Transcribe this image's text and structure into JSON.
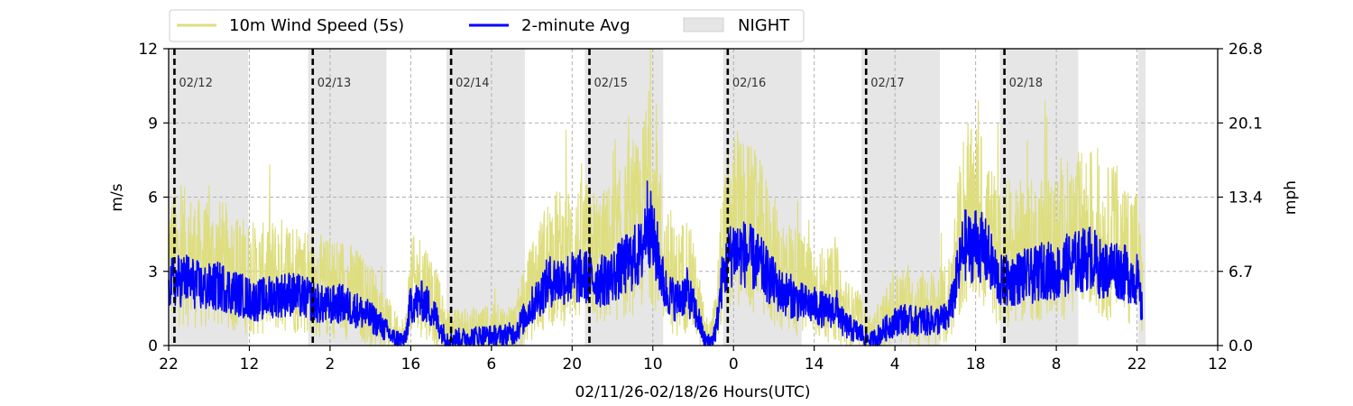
{
  "chart_data": {
    "type": "line",
    "title": "",
    "xlabel": "02/11/26-02/18/26  Hours(UTC)",
    "ylabel_left": "m/s",
    "ylabel_right": "mph",
    "x_range_hours": [
      0,
      182
    ],
    "ylim": [
      0,
      12
    ],
    "y_ticks_left": [
      "0",
      "3",
      "6",
      "9",
      "12"
    ],
    "y_ticks_right": [
      "0.0",
      "6.7",
      "13.4",
      "20.1",
      "26.8"
    ],
    "x_ticks": [
      {
        "hour": 0,
        "label": "22"
      },
      {
        "hour": 14,
        "label": "12"
      },
      {
        "hour": 28,
        "label": "2"
      },
      {
        "hour": 42,
        "label": "16"
      },
      {
        "hour": 56,
        "label": "6"
      },
      {
        "hour": 70,
        "label": "20"
      },
      {
        "hour": 84,
        "label": "10"
      },
      {
        "hour": 98,
        "label": "0"
      },
      {
        "hour": 112,
        "label": "14"
      },
      {
        "hour": 126,
        "label": "4"
      },
      {
        "hour": 140,
        "label": "18"
      },
      {
        "hour": 154,
        "label": "8"
      },
      {
        "hour": 168,
        "label": "22"
      },
      {
        "hour": 182,
        "label": "12"
      }
    ],
    "day_markers": [
      {
        "hour": 1,
        "label": "02/12"
      },
      {
        "hour": 25,
        "label": "02/13"
      },
      {
        "hour": 49,
        "label": "02/14"
      },
      {
        "hour": 73,
        "label": "02/15"
      },
      {
        "hour": 97,
        "label": "02/16"
      },
      {
        "hour": 121,
        "label": "02/17"
      },
      {
        "hour": 145,
        "label": "02/18"
      }
    ],
    "night_periods": [
      [
        0.2,
        13.8
      ],
      [
        24.2,
        37.8
      ],
      [
        48.2,
        61.8
      ],
      [
        72.2,
        85.8
      ],
      [
        96.2,
        109.8
      ],
      [
        120.2,
        133.8
      ],
      [
        144.2,
        157.8
      ],
      [
        168.2,
        169.5
      ]
    ],
    "grid": true,
    "legend_position": "top-left",
    "legend": [
      "10m Wind Speed (5s)",
      "2-minute Avg",
      "NIGHT"
    ],
    "series": [
      {
        "name": "10m Wind Speed (5s)",
        "color": "#dede80",
        "x": [
          0,
          3,
          6,
          9,
          12,
          15,
          18,
          21,
          24,
          27,
          30,
          33,
          36,
          39,
          41,
          42,
          44,
          45,
          46,
          47,
          48,
          49,
          51,
          54,
          57,
          60,
          63,
          66,
          69,
          72,
          75,
          77,
          79,
          81,
          82,
          83,
          84,
          85,
          86,
          88,
          90,
          91,
          92,
          93,
          94,
          95,
          96,
          97,
          98,
          100,
          102,
          104,
          106,
          108,
          110,
          112,
          114,
          116,
          117,
          119,
          120,
          121,
          122,
          123,
          124,
          125,
          127,
          129,
          131,
          133,
          135,
          136,
          137,
          138,
          139,
          140,
          142,
          144,
          146,
          148,
          150,
          152,
          154,
          156,
          158,
          160,
          162,
          164,
          166,
          168,
          169
        ],
        "y": [
          3.5,
          3.6,
          3.2,
          3.3,
          3.0,
          2.6,
          2.8,
          2.9,
          2.7,
          2.3,
          2.4,
          2.0,
          1.5,
          0.5,
          0.3,
          2.3,
          2.5,
          2.2,
          1.8,
          1.2,
          0.5,
          0.5,
          0.5,
          0.6,
          0.6,
          0.7,
          2.2,
          3.5,
          3.6,
          3.8,
          3.5,
          3.8,
          4.2,
          4.7,
          4.8,
          6.4,
          5.5,
          4.6,
          3.2,
          2.5,
          3.0,
          2.2,
          1.5,
          0.4,
          0.2,
          1.0,
          3.5,
          4.5,
          5.0,
          4.8,
          4.5,
          3.8,
          3.0,
          2.8,
          2.4,
          2.3,
          2.0,
          2.1,
          1.4,
          1.0,
          0.8,
          0.5,
          0.3,
          0.6,
          0.9,
          1.2,
          1.6,
          1.5,
          1.5,
          1.5,
          1.6,
          2.5,
          4.0,
          5.2,
          5.0,
          5.3,
          4.8,
          3.5,
          3.5,
          3.8,
          3.8,
          4.1,
          3.9,
          4.3,
          4.5,
          4.7,
          4.0,
          4.3,
          3.9,
          3.7,
          1.8
        ]
      },
      {
        "name": "2-minute Avg",
        "color": "#0000ff",
        "x": [
          0,
          3,
          6,
          9,
          12,
          15,
          18,
          21,
          24,
          27,
          30,
          33,
          36,
          39,
          41,
          42,
          44,
          45,
          46,
          47,
          48,
          49,
          51,
          54,
          57,
          60,
          63,
          66,
          69,
          72,
          75,
          77,
          79,
          81,
          82,
          83,
          84,
          85,
          86,
          88,
          90,
          91,
          92,
          93,
          94,
          95,
          96,
          97,
          98,
          100,
          102,
          104,
          106,
          108,
          110,
          112,
          114,
          116,
          117,
          119,
          120,
          121,
          122,
          123,
          124,
          125,
          127,
          129,
          131,
          133,
          135,
          136,
          137,
          138,
          139,
          140,
          142,
          144,
          146,
          148,
          150,
          152,
          154,
          156,
          158,
          160,
          162,
          164,
          166,
          168,
          169
        ],
        "y": [
          2.5,
          2.7,
          2.3,
          2.4,
          2.1,
          1.8,
          2.0,
          2.1,
          1.9,
          1.6,
          1.7,
          1.4,
          1.0,
          0.3,
          0.2,
          1.7,
          1.8,
          1.6,
          1.3,
          0.8,
          0.3,
          0.3,
          0.3,
          0.4,
          0.4,
          0.5,
          1.6,
          2.6,
          2.7,
          2.8,
          2.6,
          2.8,
          3.2,
          3.6,
          3.7,
          5.2,
          4.3,
          3.5,
          2.3,
          1.8,
          2.2,
          1.6,
          1.0,
          0.2,
          0.1,
          0.7,
          2.6,
          3.4,
          3.9,
          3.7,
          3.4,
          2.8,
          2.2,
          2.0,
          1.7,
          1.6,
          1.4,
          1.5,
          0.9,
          0.6,
          0.5,
          0.3,
          0.2,
          0.4,
          0.6,
          0.8,
          1.1,
          1.0,
          1.0,
          1.0,
          1.1,
          1.8,
          3.0,
          4.1,
          3.9,
          4.2,
          3.7,
          2.6,
          2.6,
          2.8,
          2.8,
          3.1,
          2.9,
          3.3,
          3.4,
          3.6,
          3.0,
          3.2,
          2.9,
          2.7,
          1.2
        ]
      }
    ],
    "colors": {
      "night": "#e6e6e6",
      "grid": "#b0b0b0",
      "day_marker": "#000000"
    }
  }
}
